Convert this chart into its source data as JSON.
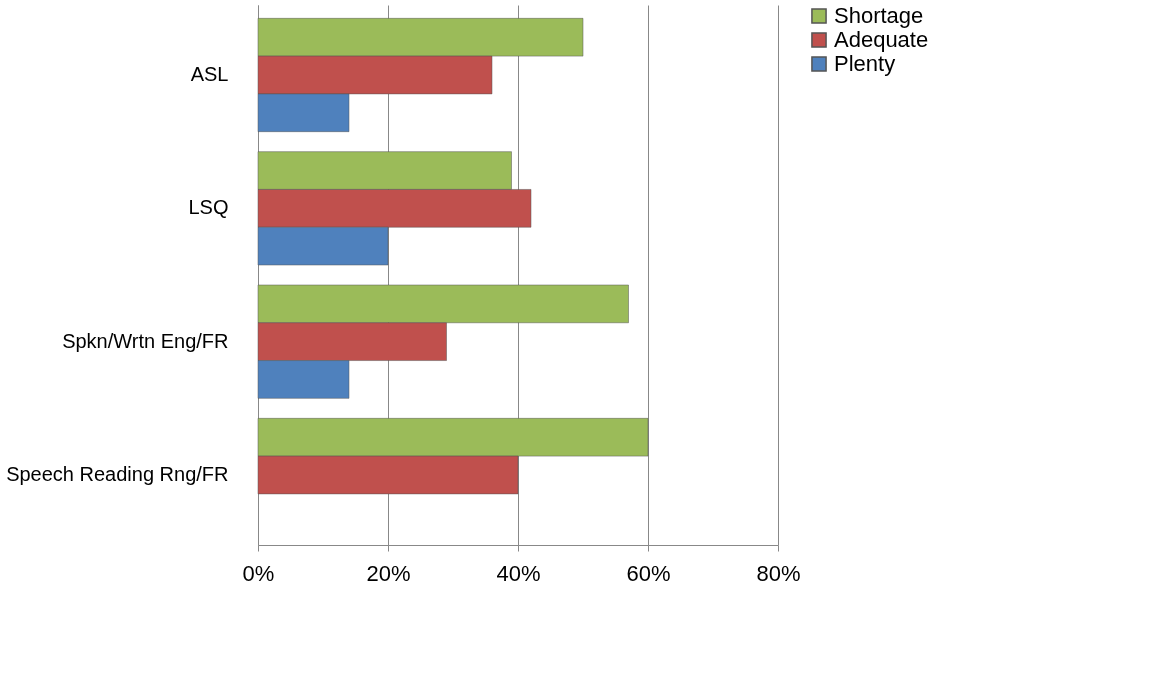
{
  "chart_data": {
    "type": "bar",
    "orientation": "horizontal",
    "categories": [
      "ASL",
      "LSQ",
      "Spkn/Wrtn Eng/FR",
      "Speech Reading Rng/FR"
    ],
    "series": [
      {
        "name": "Shortage",
        "color": "#9bbb59",
        "values": [
          50,
          39,
          57,
          60
        ]
      },
      {
        "name": "Adequate",
        "color": "#c0504d",
        "values": [
          36,
          42,
          29,
          40
        ]
      },
      {
        "name": "Plenty",
        "color": "#4f81bd",
        "values": [
          14,
          20,
          14,
          null
        ]
      }
    ],
    "xlim": [
      0,
      80
    ],
    "xticks": [
      {
        "value": 0,
        "label": "0%"
      },
      {
        "value": 20,
        "label": "20%"
      },
      {
        "value": 40,
        "label": "40%"
      },
      {
        "value": 60,
        "label": "60%"
      },
      {
        "value": 80,
        "label": "80%"
      }
    ],
    "grid": "x",
    "legend": "right"
  }
}
